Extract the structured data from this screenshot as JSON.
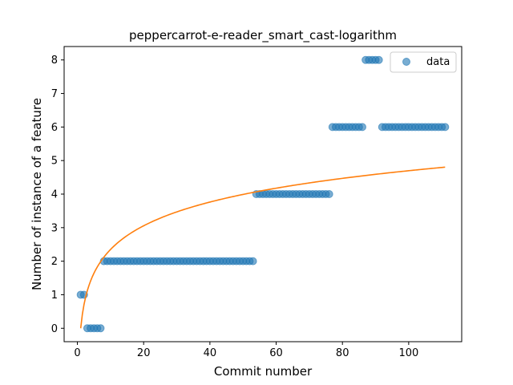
{
  "chart_data": {
    "type": "scatter",
    "title": "peppercarrot-e-reader_smart_cast-logarithm",
    "xlabel": "Commit number",
    "ylabel": "Number of instance of a feature",
    "xlim": [
      -4,
      116
    ],
    "ylim": [
      -0.4,
      8.4
    ],
    "xticks": [
      "0",
      "20",
      "40",
      "60",
      "80",
      "100"
    ],
    "yticks": [
      "0",
      "1",
      "2",
      "3",
      "4",
      "5",
      "6",
      "7",
      "8"
    ],
    "legend": {
      "placement": "top-right",
      "entries": [
        "data"
      ]
    },
    "grid": false,
    "colors": {
      "data": "#1f77b4",
      "fit": "#ff7f0e"
    },
    "series": [
      {
        "name": "data",
        "type": "scatter",
        "segments": [
          {
            "x_from": 1,
            "x_to": 2,
            "y": 1
          },
          {
            "x_from": 3,
            "x_to": 7,
            "y": 0
          },
          {
            "x_from": 8,
            "x_to": 53,
            "y": 2
          },
          {
            "x_from": 54,
            "x_to": 76,
            "y": 4
          },
          {
            "x_from": 77,
            "x_to": 86,
            "y": 6
          },
          {
            "x_from": 87,
            "x_to": 91,
            "y": 8
          },
          {
            "x_from": 92,
            "x_to": 111,
            "y": 6
          }
        ]
      },
      {
        "type": "line",
        "model": "logarithm",
        "a": 1.02,
        "b": 0.0,
        "x_range": [
          1,
          111
        ]
      }
    ]
  }
}
